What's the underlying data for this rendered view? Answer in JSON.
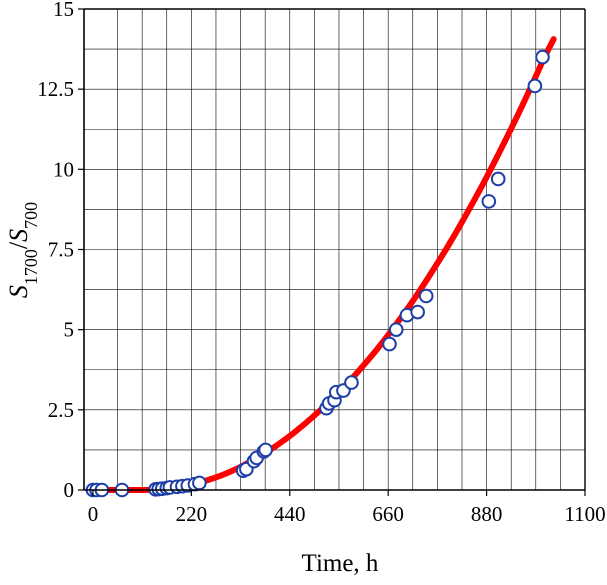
{
  "chart_data": {
    "type": "scatter",
    "title": "",
    "xlabel": "Time, h",
    "ylabel": {
      "s1": "S",
      "sub1": "1700",
      "sep": "/",
      "s2": "S",
      "sub2": "700"
    },
    "xlim": [
      -20,
      1100
    ],
    "ylim": [
      0,
      15
    ],
    "grid": true,
    "xticks": [
      0,
      220,
      440,
      660,
      880,
      1100
    ],
    "yticks": [
      0,
      2.5,
      5,
      7.5,
      10,
      12.5,
      15
    ],
    "xtick_labels": [
      "0",
      "220",
      "440",
      "660",
      "880",
      "1100"
    ],
    "ytick_labels": [
      "0",
      "2.5",
      "5",
      "7.5",
      "10",
      "12.5",
      "15"
    ],
    "marker_color": "#1f3fa8",
    "fit_color": "#ff0000",
    "series": [
      {
        "type": "scatter",
        "points": [
          [
            0,
            0
          ],
          [
            8,
            0
          ],
          [
            20,
            0
          ],
          [
            65,
            0
          ],
          [
            140,
            0.02
          ],
          [
            147,
            0.03
          ],
          [
            155,
            0.04
          ],
          [
            165,
            0.06
          ],
          [
            172,
            0.08
          ],
          [
            188,
            0.1
          ],
          [
            200,
            0.12
          ],
          [
            212,
            0.14
          ],
          [
            228,
            0.18
          ],
          [
            238,
            0.22
          ],
          [
            336,
            0.6
          ],
          [
            343,
            0.65
          ],
          [
            360,
            0.9
          ],
          [
            366,
            1.0
          ],
          [
            382,
            1.2
          ],
          [
            386,
            1.25
          ],
          [
            522,
            2.55
          ],
          [
            528,
            2.7
          ],
          [
            540,
            2.8
          ],
          [
            544,
            3.05
          ],
          [
            560,
            3.1
          ],
          [
            578,
            3.35
          ],
          [
            663,
            4.55
          ],
          [
            678,
            5.0
          ],
          [
            702,
            5.45
          ],
          [
            726,
            5.55
          ],
          [
            745,
            6.05
          ],
          [
            885,
            9.0
          ],
          [
            906,
            9.7
          ],
          [
            988,
            12.6
          ],
          [
            1005,
            13.5
          ]
        ]
      },
      {
        "type": "line",
        "points": [
          [
            0,
            0
          ],
          [
            40,
            0
          ],
          [
            80,
            0
          ],
          [
            110,
            0
          ],
          [
            130,
            0.005
          ],
          [
            150,
            0.02
          ],
          [
            170,
            0.05
          ],
          [
            190,
            0.09
          ],
          [
            210,
            0.14
          ],
          [
            230,
            0.2
          ],
          [
            250,
            0.28
          ],
          [
            270,
            0.37
          ],
          [
            290,
            0.47
          ],
          [
            310,
            0.59
          ],
          [
            330,
            0.72
          ],
          [
            350,
            0.87
          ],
          [
            370,
            1.03
          ],
          [
            390,
            1.2
          ],
          [
            410,
            1.38
          ],
          [
            430,
            1.58
          ],
          [
            450,
            1.79
          ],
          [
            470,
            2.02
          ],
          [
            490,
            2.26
          ],
          [
            510,
            2.51
          ],
          [
            530,
            2.77
          ],
          [
            550,
            3.05
          ],
          [
            570,
            3.34
          ],
          [
            590,
            3.65
          ],
          [
            610,
            3.97
          ],
          [
            630,
            4.3
          ],
          [
            650,
            4.65
          ],
          [
            670,
            5.02
          ],
          [
            690,
            5.4
          ],
          [
            710,
            5.79
          ],
          [
            730,
            6.2
          ],
          [
            750,
            6.63
          ],
          [
            770,
            7.07
          ],
          [
            790,
            7.52
          ],
          [
            810,
            7.99
          ],
          [
            830,
            8.48
          ],
          [
            850,
            8.98
          ],
          [
            870,
            9.49
          ],
          [
            890,
            10.02
          ],
          [
            910,
            10.57
          ],
          [
            930,
            11.13
          ],
          [
            950,
            11.7
          ],
          [
            970,
            12.29
          ],
          [
            990,
            12.9
          ],
          [
            1010,
            13.52
          ],
          [
            1030,
            14.06
          ]
        ]
      }
    ]
  }
}
